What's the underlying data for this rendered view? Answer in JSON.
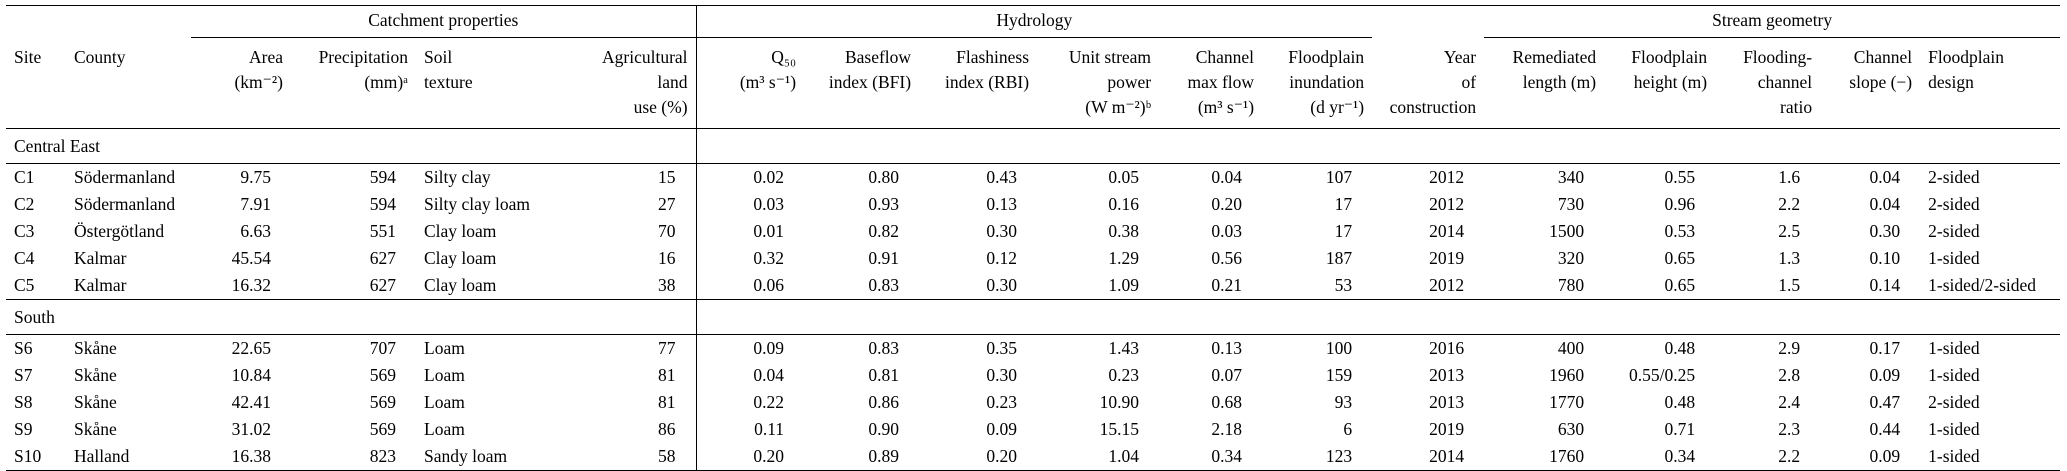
{
  "colors": {
    "text": "#000000",
    "background": "#ffffff",
    "rule": "#000000"
  },
  "table": {
    "group_headers": [
      {
        "label": "Catchment properties"
      },
      {
        "label": "Hydrology"
      },
      {
        "label": "Stream geometry"
      }
    ],
    "columns": [
      {
        "lines": [
          "Site"
        ]
      },
      {
        "lines": [
          "County"
        ]
      },
      {
        "lines": [
          "Area",
          "(km⁻²)"
        ]
      },
      {
        "lines": [
          "Precipitation",
          "(mm)ᵃ"
        ]
      },
      {
        "lines": [
          "Soil",
          "texture"
        ]
      },
      {
        "lines": [
          "Agricultural",
          "land",
          "use (%)"
        ]
      },
      {
        "lines": [
          "Q₅₀",
          "(m³ s⁻¹)"
        ]
      },
      {
        "lines": [
          "Baseflow",
          "index (BFI)"
        ]
      },
      {
        "lines": [
          "Flashiness",
          "index (RBI)"
        ]
      },
      {
        "lines": [
          "Unit stream",
          "power",
          "(W m⁻²)ᵇ"
        ]
      },
      {
        "lines": [
          "Channel",
          "max flow",
          "(m³ s⁻¹)"
        ]
      },
      {
        "lines": [
          "Floodplain",
          "inundation",
          "(d yr⁻¹)"
        ]
      },
      {
        "lines": [
          "Year",
          "of",
          "construction"
        ]
      },
      {
        "lines": [
          "Remediated",
          "length (m)"
        ]
      },
      {
        "lines": [
          "Floodplain",
          "height (m)"
        ]
      },
      {
        "lines": [
          "Flooding-",
          "channel",
          "ratio"
        ]
      },
      {
        "lines": [
          "Channel",
          "slope (−)"
        ]
      },
      {
        "lines": [
          "Floodplain",
          "design"
        ]
      }
    ],
    "sections": [
      {
        "label": "Central East",
        "rows": [
          [
            "C1",
            "Södermanland",
            "9.75",
            "594",
            "Silty clay",
            "15",
            "0.02",
            "0.80",
            "0.43",
            "0.05",
            "0.04",
            "107",
            "2012",
            "340",
            "0.55",
            "1.6",
            "0.04",
            "2-sided"
          ],
          [
            "C2",
            "Södermanland",
            "7.91",
            "594",
            "Silty clay loam",
            "27",
            "0.03",
            "0.93",
            "0.13",
            "0.16",
            "0.20",
            "17",
            "2012",
            "730",
            "0.96",
            "2.2",
            "0.04",
            "2-sided"
          ],
          [
            "C3",
            "Östergötland",
            "6.63",
            "551",
            "Clay loam",
            "70",
            "0.01",
            "0.82",
            "0.30",
            "0.38",
            "0.03",
            "17",
            "2014",
            "1500",
            "0.53",
            "2.5",
            "0.30",
            "2-sided"
          ],
          [
            "C4",
            "Kalmar",
            "45.54",
            "627",
            "Clay loam",
            "16",
            "0.32",
            "0.91",
            "0.12",
            "1.29",
            "0.56",
            "187",
            "2019",
            "320",
            "0.65",
            "1.3",
            "0.10",
            "1-sided"
          ],
          [
            "C5",
            "Kalmar",
            "16.32",
            "627",
            "Clay loam",
            "38",
            "0.06",
            "0.83",
            "0.30",
            "1.09",
            "0.21",
            "53",
            "2012",
            "780",
            "0.65",
            "1.5",
            "0.14",
            "1-sided/2-sided"
          ]
        ]
      },
      {
        "label": "South",
        "rows": [
          [
            "S6",
            "Skåne",
            "22.65",
            "707",
            "Loam",
            "77",
            "0.09",
            "0.83",
            "0.35",
            "1.43",
            "0.13",
            "100",
            "2016",
            "400",
            "0.48",
            "2.9",
            "0.17",
            "1-sided"
          ],
          [
            "S7",
            "Skåne",
            "10.84",
            "569",
            "Loam",
            "81",
            "0.04",
            "0.81",
            "0.30",
            "0.23",
            "0.07",
            "159",
            "2013",
            "1960",
            "0.55/0.25",
            "2.8",
            "0.09",
            "1-sided"
          ],
          [
            "S8",
            "Skåne",
            "42.41",
            "569",
            "Loam",
            "81",
            "0.22",
            "0.86",
            "0.23",
            "10.90",
            "0.68",
            "93",
            "2013",
            "1770",
            "0.48",
            "2.4",
            "0.47",
            "2-sided"
          ],
          [
            "S9",
            "Skåne",
            "31.02",
            "569",
            "Loam",
            "86",
            "0.11",
            "0.90",
            "0.09",
            "15.15",
            "2.18",
            "6",
            "2019",
            "630",
            "0.71",
            "2.3",
            "0.44",
            "1-sided"
          ],
          [
            "S10",
            "Halland",
            "16.38",
            "823",
            "Sandy loam",
            "58",
            "0.20",
            "0.89",
            "0.20",
            "1.04",
            "0.34",
            "123",
            "2014",
            "1760",
            "0.34",
            "2.2",
            "0.09",
            "1-sided"
          ]
        ]
      }
    ]
  }
}
